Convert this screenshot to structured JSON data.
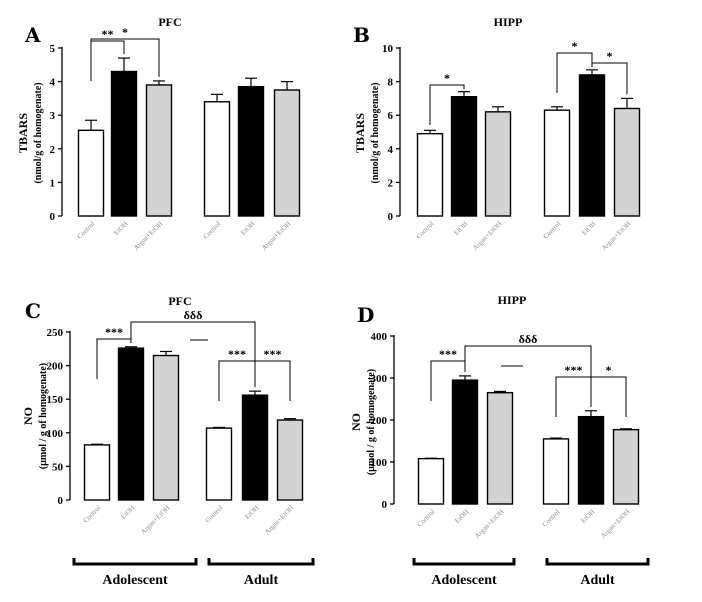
{
  "chart_data": [
    {
      "type": "bar",
      "panel": "A",
      "title": "PFC",
      "ylabel": "TBARS",
      "ylabel2": "(nmol/g of homogenate)",
      "ylim": [
        0,
        5
      ],
      "yticks": [
        "0",
        "1",
        "2",
        "3",
        "4",
        "5"
      ],
      "categories": [
        "Control",
        "EtOH",
        "Argan+EtOH",
        "Control",
        "EtOH",
        "Argan+EtOH"
      ],
      "fills": [
        "#ffffff",
        "#000000",
        "#d3d3d3",
        "#ffffff",
        "#000000",
        "#d3d3d3"
      ],
      "values": [
        2.55,
        4.3,
        3.9,
        3.4,
        3.85,
        3.75
      ],
      "errors": [
        0.3,
        0.4,
        0.12,
        0.22,
        0.25,
        0.25
      ],
      "annotations": [
        {
          "text": "**",
          "from": 0,
          "to": 1
        },
        {
          "text": "*",
          "from": 0,
          "to": 2
        }
      ]
    },
    {
      "type": "bar",
      "panel": "B",
      "title": "HIPP",
      "ylabel": "TBARS",
      "ylabel2": "(nmol/g of homogenate)",
      "ylim": [
        0,
        10
      ],
      "yticks": [
        "0",
        "2",
        "4",
        "6",
        "8",
        "10"
      ],
      "categories": [
        "Control",
        "EtOH",
        "Argan+EtOH",
        "Control",
        "EtOH",
        "Argan+EtOH"
      ],
      "fills": [
        "#ffffff",
        "#000000",
        "#d3d3d3",
        "#ffffff",
        "#000000",
        "#d3d3d3"
      ],
      "values": [
        4.9,
        7.1,
        6.2,
        6.3,
        8.4,
        6.4
      ],
      "errors": [
        0.2,
        0.3,
        0.3,
        0.2,
        0.3,
        0.6
      ],
      "annotations": [
        {
          "text": "*",
          "from": 0,
          "to": 1
        },
        {
          "text": "*",
          "from": 3,
          "to": 4
        },
        {
          "text": "*",
          "from": 4,
          "to": 5
        }
      ]
    },
    {
      "type": "bar",
      "panel": "C",
      "title": "PFC",
      "ylabel": "NO",
      "ylabel2": "(µmol / g of homogenate)",
      "ylim": [
        0,
        250
      ],
      "yticks": [
        "0",
        "50",
        "100",
        "150",
        "200",
        "250"
      ],
      "categories": [
        "Control",
        "EtOH",
        "Argan+EtOH",
        "Control",
        "EtOH",
        "Argan+EtOH"
      ],
      "fills": [
        "#ffffff",
        "#000000",
        "#d3d3d3",
        "#ffffff",
        "#000000",
        "#d3d3d3"
      ],
      "values": [
        82,
        226,
        215,
        107,
        156,
        119
      ],
      "errors": [
        1,
        2,
        6,
        1,
        6,
        2
      ],
      "annotations": [
        {
          "text": "***",
          "from": 0,
          "to": 1
        },
        {
          "text": "δδδ",
          "from": 1,
          "to": 4
        },
        {
          "text": "***",
          "from": 3,
          "to": 4
        },
        {
          "text": "***",
          "from": 4,
          "to": 5
        }
      ]
    },
    {
      "type": "bar",
      "panel": "D",
      "title": "HIPP",
      "ylabel": "NO",
      "ylabel2": "(µmol / g of homogenate)",
      "ylim": [
        0,
        400
      ],
      "yticks": [
        "0",
        "100",
        "200",
        "300",
        "400"
      ],
      "categories": [
        "Control",
        "EtOH",
        "Argan+EtOH",
        "Control",
        "EtOH",
        "Argan+EtOH"
      ],
      "fills": [
        "#ffffff",
        "#000000",
        "#d3d3d3",
        "#ffffff",
        "#000000",
        "#d3d3d3"
      ],
      "values": [
        108,
        295,
        265,
        155,
        208,
        177
      ],
      "errors": [
        1,
        10,
        3,
        2,
        14,
        2
      ],
      "annotations": [
        {
          "text": "***",
          "from": 0,
          "to": 1
        },
        {
          "text": "δδδ",
          "from": 1,
          "to": 4
        },
        {
          "text": "***",
          "from": 3,
          "to": 4
        },
        {
          "text": "*",
          "from": 4,
          "to": 5
        }
      ]
    }
  ],
  "groups": [
    "Adolescent",
    "Adult"
  ]
}
